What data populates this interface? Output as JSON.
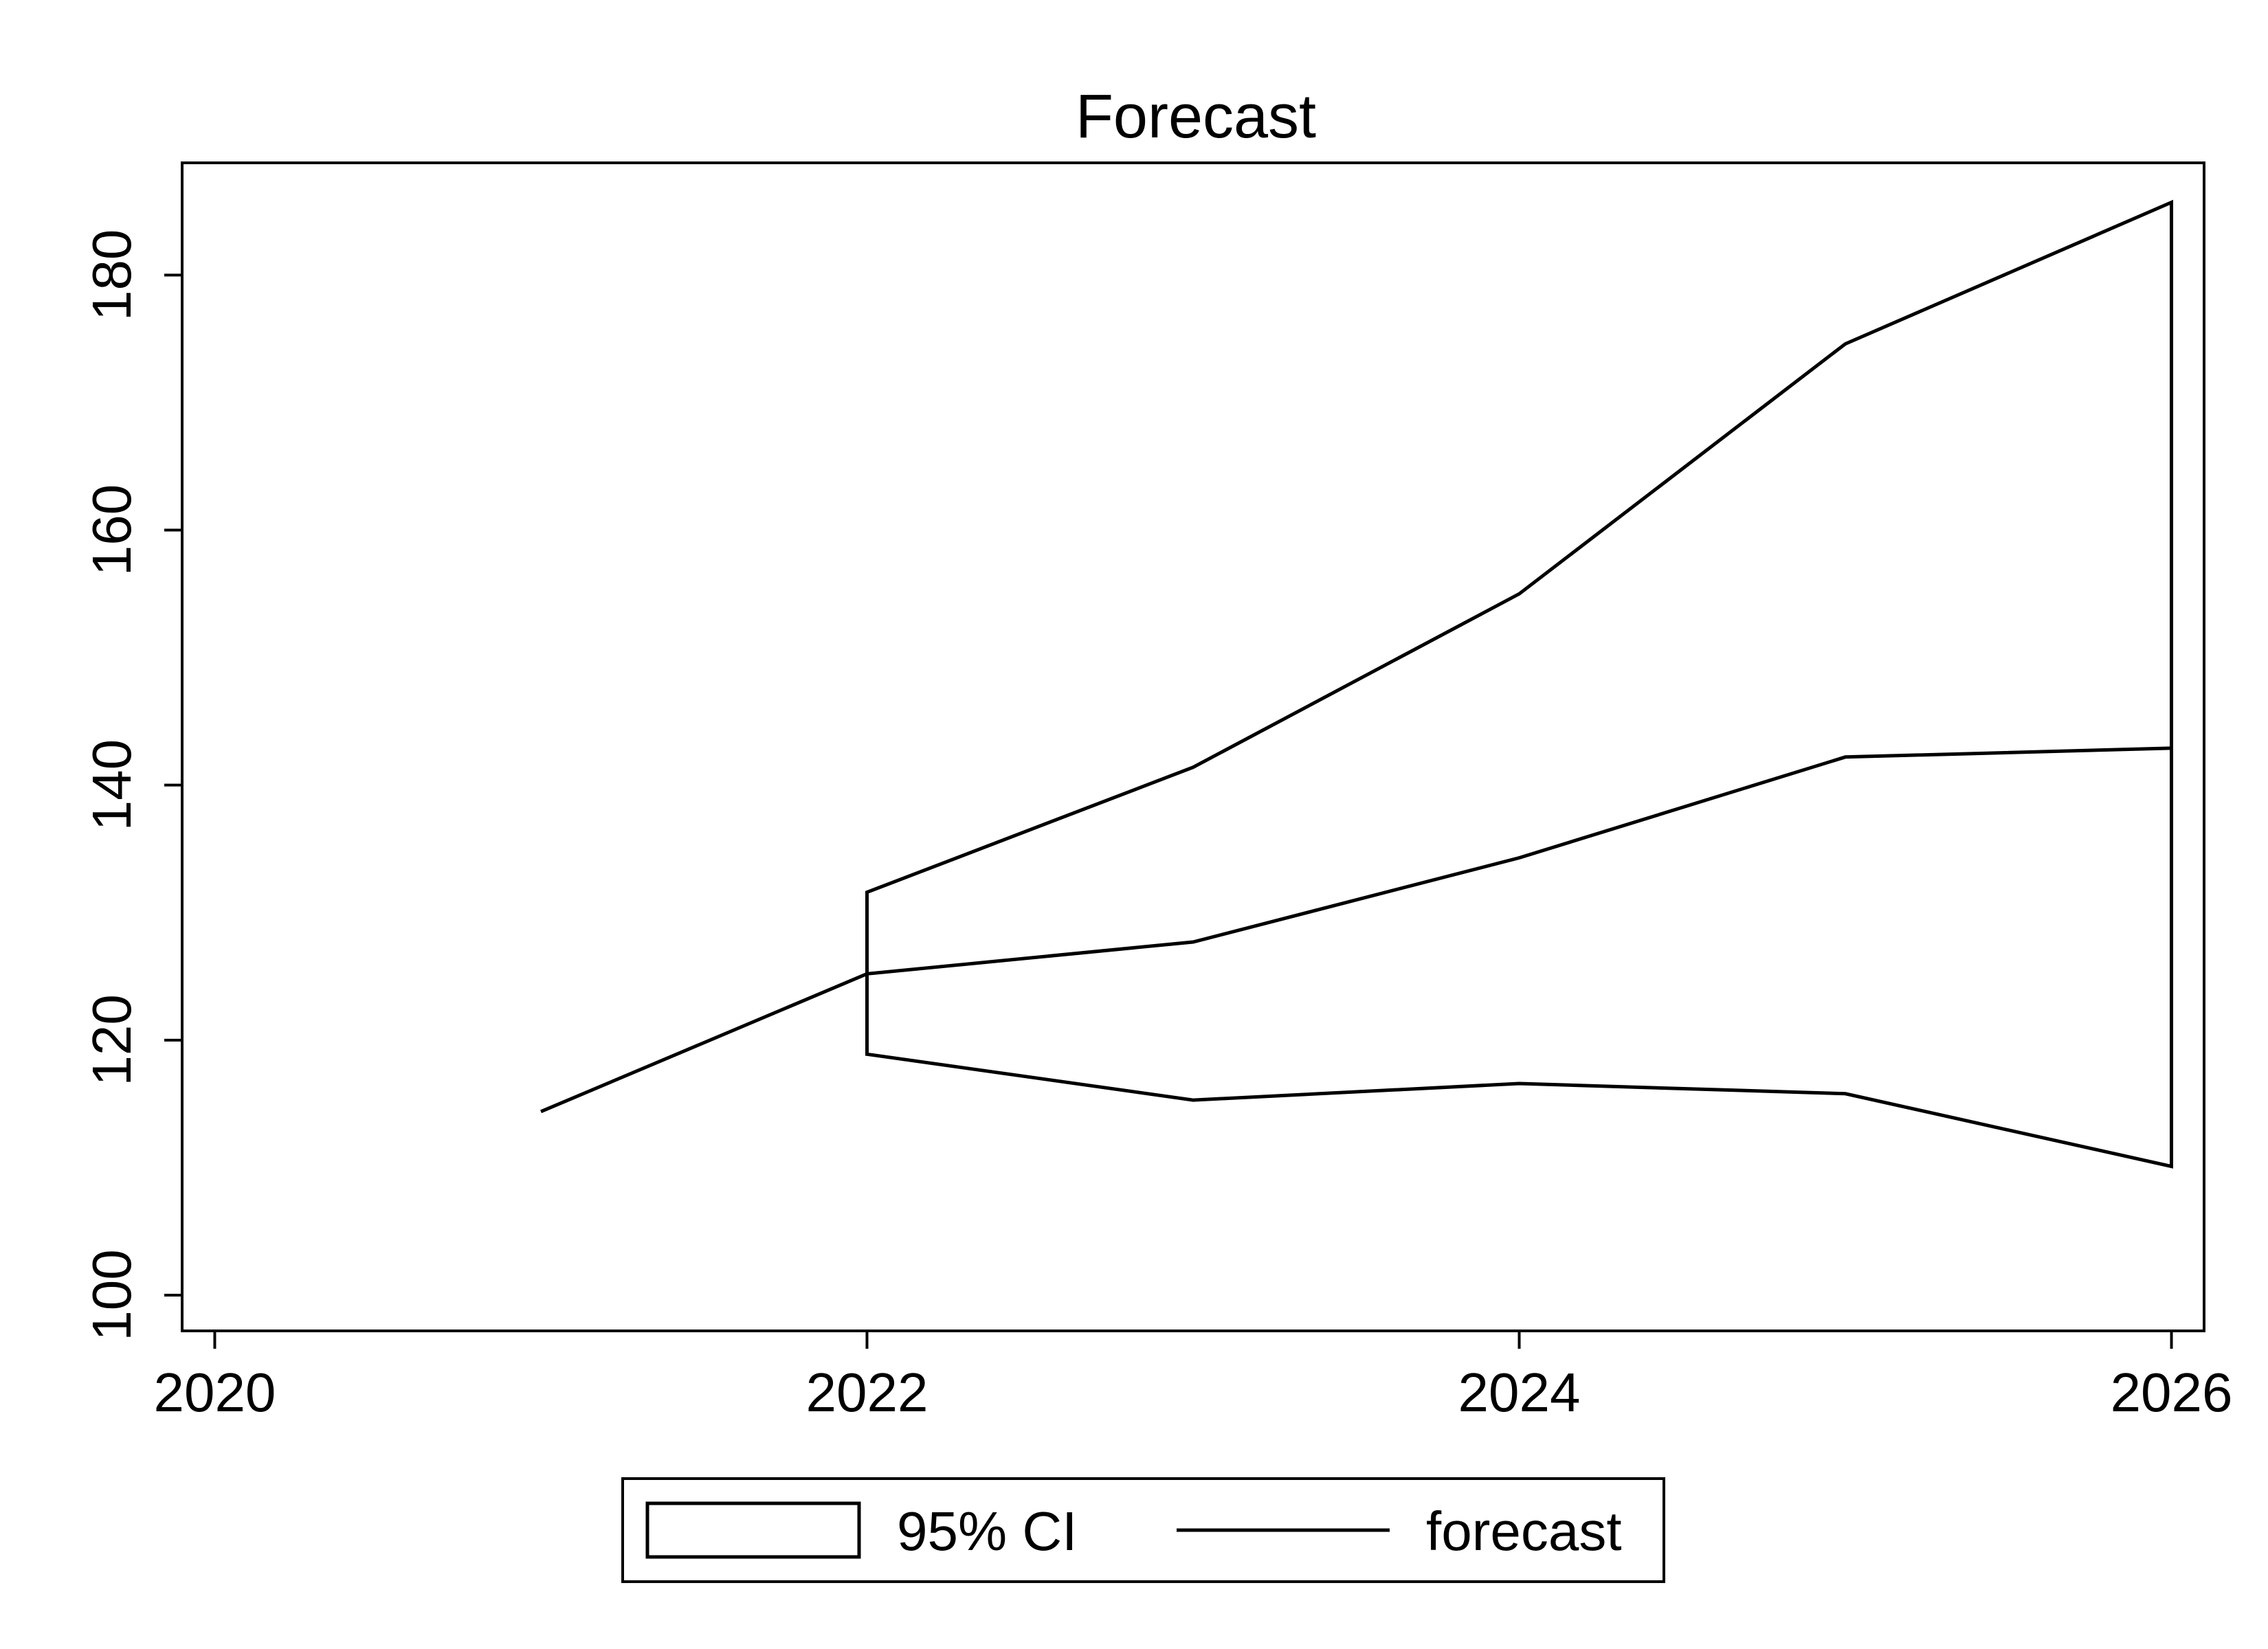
{
  "chart_data": {
    "type": "line",
    "title": "Forecast",
    "xlabel": "",
    "ylabel": "",
    "xlim": [
      2019.9,
      2026.1
    ],
    "ylim": [
      97.2,
      188.8
    ],
    "x_ticks": [
      2020,
      2022,
      2024,
      2026
    ],
    "y_ticks": [
      100,
      120,
      140,
      160,
      180
    ],
    "grid": false,
    "legend_position": "bottom",
    "line_color": "#000000",
    "ci": {
      "name": "95% CI",
      "x": [
        2022,
        2023,
        2024,
        2025,
        2026
      ],
      "upper": [
        131.6,
        141.4,
        155.0,
        174.6,
        185.7
      ],
      "lower": [
        118.9,
        115.3,
        116.6,
        115.8,
        110.1
      ]
    },
    "series": [
      {
        "name": "forecast",
        "x": [
          2021,
          2022,
          2023,
          2024,
          2025,
          2026
        ],
        "values": [
          114.4,
          125.2,
          127.7,
          134.3,
          142.2,
          142.9
        ]
      }
    ]
  }
}
